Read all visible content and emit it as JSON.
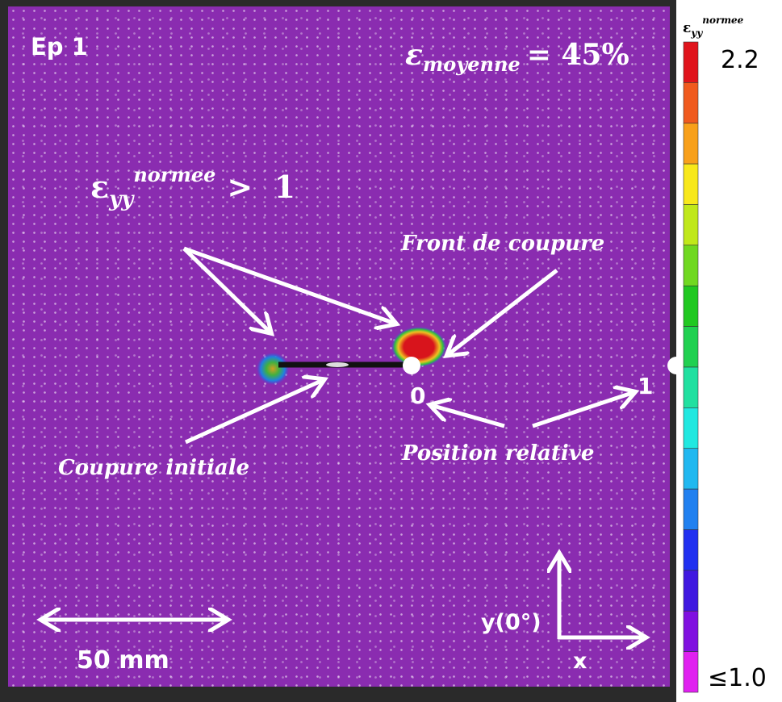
{
  "header": {
    "label": "Ep 1"
  },
  "mean_strain": {
    "symbol": "ε",
    "subscript": "moyenne",
    "rest": "= 45%"
  },
  "threshold": {
    "symbol": "ε",
    "subscript": "yy",
    "superscript": "normee",
    "rest": ">  1"
  },
  "annotations": {
    "front": "Front de coupure",
    "initial": "Coupure initiale",
    "position": "Position relative",
    "pos0": "0",
    "pos1": "1"
  },
  "scale_bar": "50 mm",
  "axes": {
    "y": "y(0°)",
    "x": "x"
  },
  "colorbar": {
    "symbol": "ε",
    "subscript": "yy",
    "superscript": "normee",
    "max": "2.2",
    "min": "≤1.0"
  }
}
